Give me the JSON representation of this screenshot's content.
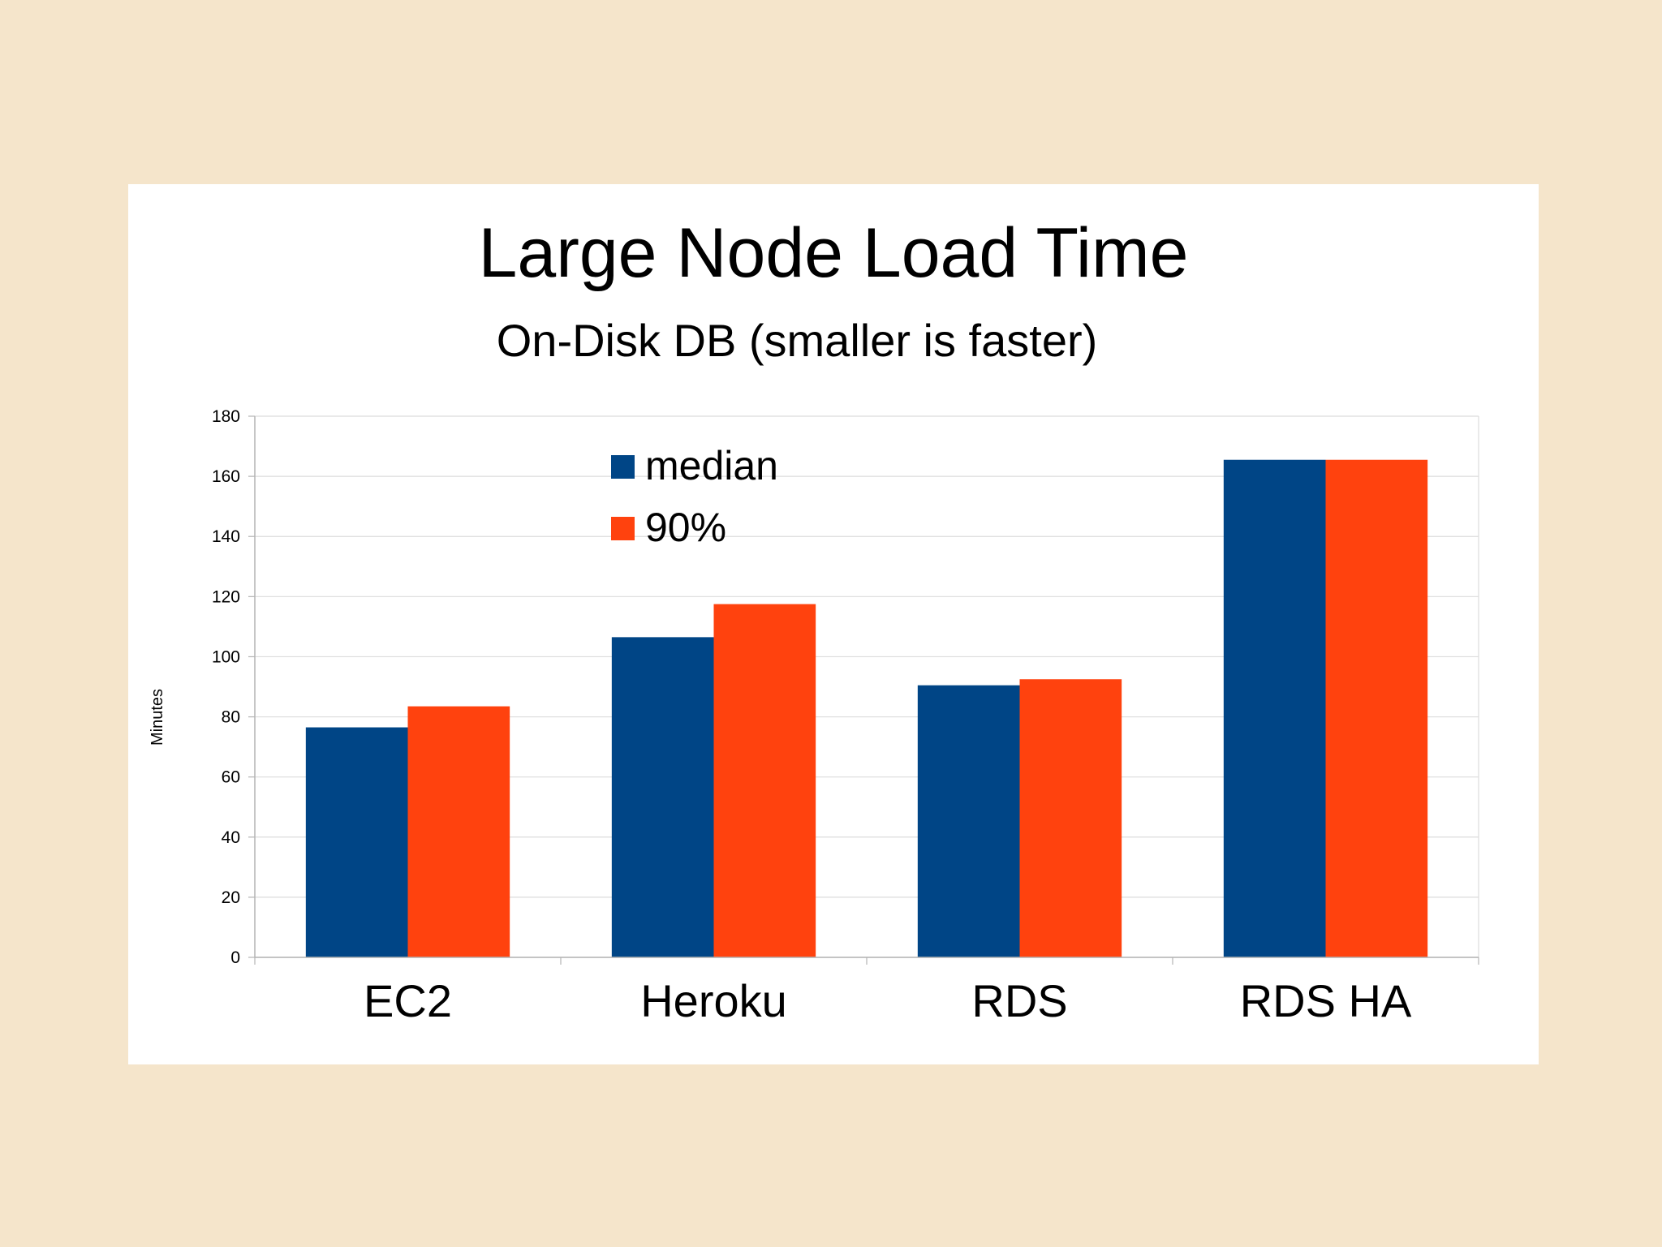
{
  "chart_data": {
    "type": "bar",
    "title": "Large Node Load Time",
    "subtitle": "On-Disk DB (smaller is faster)",
    "ylabel": "Minutes",
    "xlabel": "",
    "categories": [
      "EC2",
      "Heroku",
      "RDS",
      "RDS HA"
    ],
    "series": [
      {
        "name": "median",
        "color": "#004586",
        "values": [
          76.5,
          106.5,
          90.5,
          165.5
        ]
      },
      {
        "name": "90%",
        "color": "#ff420e",
        "values": [
          83.5,
          117.5,
          92.5,
          165.5
        ]
      }
    ],
    "ylim": [
      0,
      180
    ],
    "yticks": [
      0,
      20,
      40,
      60,
      80,
      100,
      120,
      140,
      160,
      180
    ],
    "grid": true,
    "legend_position": "top-left"
  }
}
